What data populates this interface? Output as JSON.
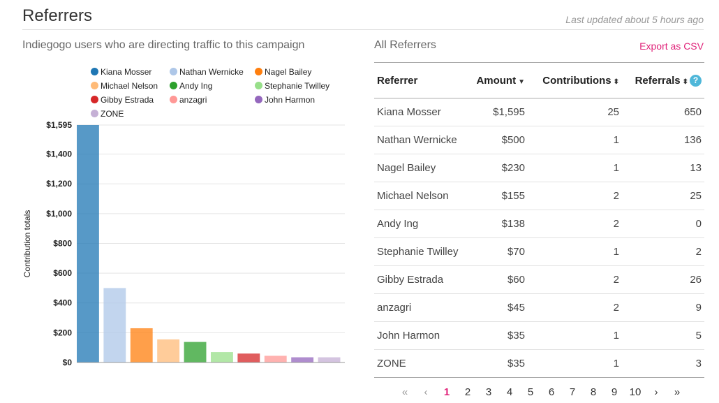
{
  "header": {
    "title": "Referrers",
    "last_updated": "Last updated about 5 hours ago"
  },
  "left_panel": {
    "subtitle": "Indiegogo users who are directing traffic to this campaign"
  },
  "right_panel": {
    "subtitle": "All Referrers",
    "export_label": "Export as CSV"
  },
  "chart_data": {
    "type": "bar",
    "categories": [
      "Kiana Mosser",
      "Nathan Wernicke",
      "Nagel Bailey",
      "Michael Nelson",
      "Andy Ing",
      "Stephanie Twilley",
      "Gibby Estrada",
      "anzagri",
      "John Harmon",
      "ZONE"
    ],
    "values": [
      1595,
      500,
      230,
      155,
      138,
      70,
      60,
      45,
      35,
      35
    ],
    "colors": [
      "#1f77b4",
      "#aec7e8",
      "#ff7f0e",
      "#ffbb78",
      "#2ca02c",
      "#98df8a",
      "#d62728",
      "#ff9896",
      "#9467bd",
      "#c5b0d5"
    ],
    "ylabel": "Contribution totals",
    "ylim": [
      0,
      1595
    ],
    "yticks": [
      "$0",
      "$200",
      "$400",
      "$600",
      "$800",
      "$1,000",
      "$1,200",
      "$1,400",
      "$1,595"
    ],
    "ytick_values": [
      0,
      200,
      400,
      600,
      800,
      1000,
      1200,
      1400,
      1595
    ],
    "grid": true,
    "legend": "top"
  },
  "table": {
    "headers": {
      "referrer": "Referrer",
      "amount": "Amount",
      "contributions": "Contributions",
      "referrals": "Referrals"
    },
    "help_icon": "?",
    "rows": [
      {
        "referrer": "Kiana Mosser",
        "amount": "$1,595",
        "contributions": "25",
        "referrals": "650"
      },
      {
        "referrer": "Nathan Wernicke",
        "amount": "$500",
        "contributions": "1",
        "referrals": "136"
      },
      {
        "referrer": "Nagel Bailey",
        "amount": "$230",
        "contributions": "1",
        "referrals": "13"
      },
      {
        "referrer": "Michael Nelson",
        "amount": "$155",
        "contributions": "2",
        "referrals": "25"
      },
      {
        "referrer": "Andy Ing",
        "amount": "$138",
        "contributions": "2",
        "referrals": "0"
      },
      {
        "referrer": "Stephanie Twilley",
        "amount": "$70",
        "contributions": "1",
        "referrals": "2"
      },
      {
        "referrer": "Gibby Estrada",
        "amount": "$60",
        "contributions": "2",
        "referrals": "26"
      },
      {
        "referrer": "anzagri",
        "amount": "$45",
        "contributions": "2",
        "referrals": "9"
      },
      {
        "referrer": "John Harmon",
        "amount": "$35",
        "contributions": "1",
        "referrals": "5"
      },
      {
        "referrer": "ZONE",
        "amount": "$35",
        "contributions": "1",
        "referrals": "3"
      }
    ]
  },
  "pagination": {
    "first": "«",
    "prev": "‹",
    "pages": [
      "1",
      "2",
      "3",
      "4",
      "5",
      "6",
      "7",
      "8",
      "9",
      "10"
    ],
    "current": "1",
    "next": "›",
    "last": "»"
  }
}
